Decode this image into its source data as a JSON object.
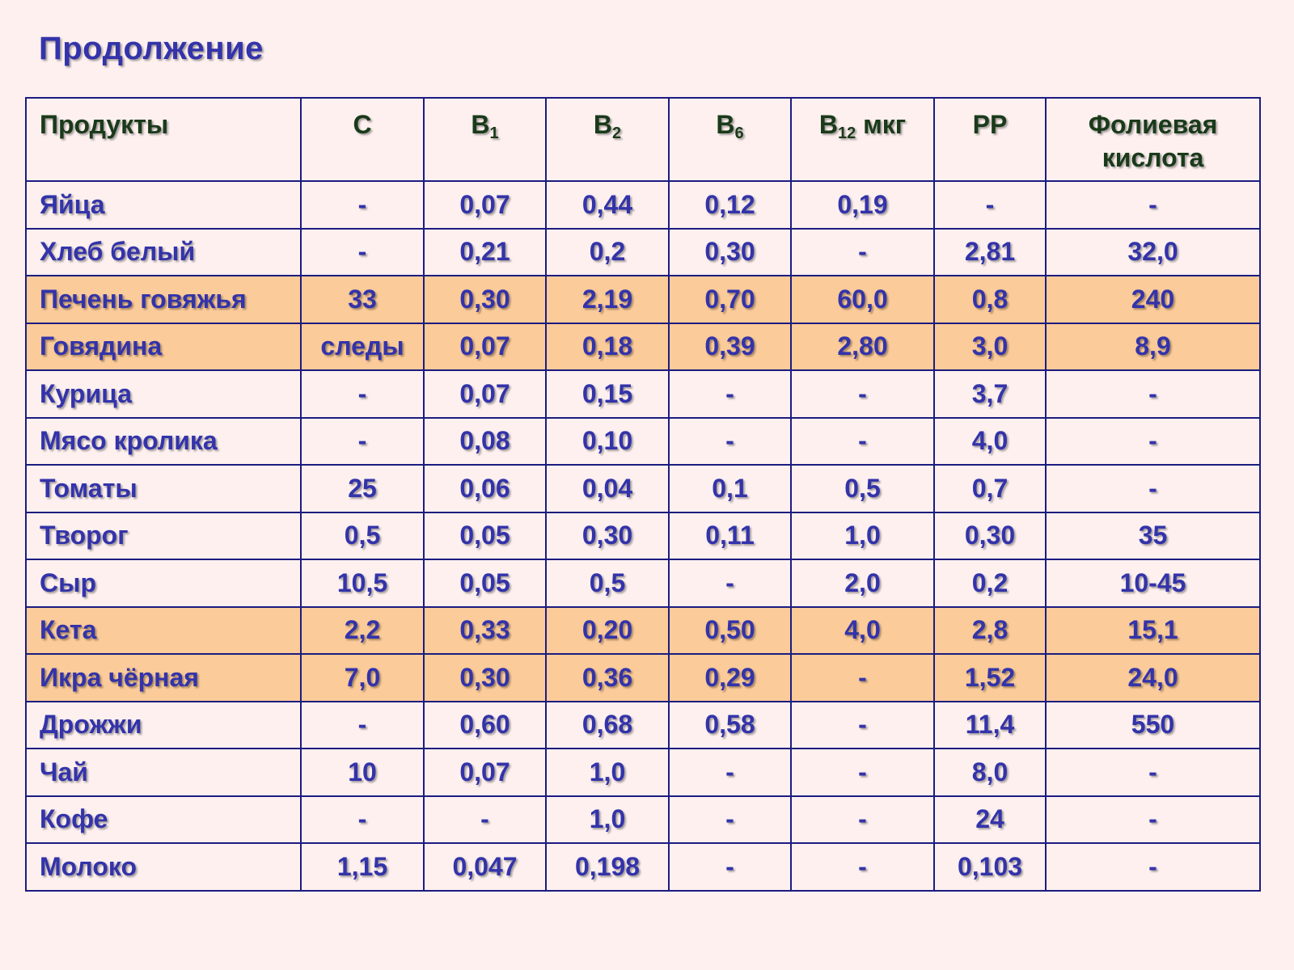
{
  "title": "Продолжение",
  "table": {
    "headers": {
      "product": "Продукты",
      "c": "С",
      "b1": {
        "letter": "В",
        "sub": "1",
        "suffix": ""
      },
      "b2": {
        "letter": "В",
        "sub": "2",
        "suffix": ""
      },
      "b6": {
        "letter": "В",
        "sub": "6",
        "suffix": ""
      },
      "b12": {
        "letter": "В",
        "sub": "12",
        "suffix": " мкг"
      },
      "pp": "РР",
      "folic_line1": "Фолиевая",
      "folic_line2": "кислота"
    },
    "rows": [
      {
        "product": "Яйца",
        "c": "-",
        "b1": "0,07",
        "b2": "0,44",
        "b6": "0,12",
        "b12": "0,19",
        "pp": "-",
        "folic": "-",
        "highlighted": false
      },
      {
        "product": "Хлеб белый",
        "c": "-",
        "b1": "0,21",
        "b2": "0,2",
        "b6": "0,30",
        "b12": "-",
        "pp": "2,81",
        "folic": "32,0",
        "highlighted": false
      },
      {
        "product": "Печень говяжья",
        "c": "33",
        "b1": "0,30",
        "b2": "2,19",
        "b6": "0,70",
        "b12": "60,0",
        "pp": "0,8",
        "folic": "240",
        "highlighted": true
      },
      {
        "product": "Говядина",
        "c": "следы",
        "b1": "0,07",
        "b2": "0,18",
        "b6": "0,39",
        "b12": "2,80",
        "pp": "3,0",
        "folic": "8,9",
        "highlighted": true
      },
      {
        "product": "Курица",
        "c": "-",
        "b1": "0,07",
        "b2": "0,15",
        "b6": "-",
        "b12": "-",
        "pp": "3,7",
        "folic": "-",
        "highlighted": false
      },
      {
        "product": "Мясо кролика",
        "c": "-",
        "b1": "0,08",
        "b2": "0,10",
        "b6": "-",
        "b12": "-",
        "pp": "4,0",
        "folic": "-",
        "highlighted": false
      },
      {
        "product": "Томаты",
        "c": "25",
        "b1": "0,06",
        "b2": "0,04",
        "b6": "0,1",
        "b12": "0,5",
        "pp": "0,7",
        "folic": "-",
        "highlighted": false
      },
      {
        "product": "Творог",
        "c": "0,5",
        "b1": "0,05",
        "b2": "0,30",
        "b6": "0,11",
        "b12": "1,0",
        "pp": "0,30",
        "folic": "35",
        "highlighted": false
      },
      {
        "product": "Сыр",
        "c": "10,5",
        "b1": "0,05",
        "b2": "0,5",
        "b6": "-",
        "b12": "2,0",
        "pp": "0,2",
        "folic": "10-45",
        "highlighted": false
      },
      {
        "product": "Кета",
        "c": "2,2",
        "b1": "0,33",
        "b2": "0,20",
        "b6": "0,50",
        "b12": "4,0",
        "pp": "2,8",
        "folic": "15,1",
        "highlighted": true
      },
      {
        "product": "Икра чёрная",
        "c": "7,0",
        "b1": "0,30",
        "b2": "0,36",
        "b6": "0,29",
        "b12": "-",
        "pp": "1,52",
        "folic": "24,0",
        "highlighted": true
      },
      {
        "product": "Дрожжи",
        "c": "-",
        "b1": "0,60",
        "b2": "0,68",
        "b6": "0,58",
        "b12": "-",
        "pp": "11,4",
        "folic": "550",
        "highlighted": false
      },
      {
        "product": "Чай",
        "c": "10",
        "b1": "0,07",
        "b2": "1,0",
        "b6": "-",
        "b12": "-",
        "pp": "8,0",
        "folic": "-",
        "highlighted": false
      },
      {
        "product": "Кофе",
        "c": "-",
        "b1": "-",
        "b2": "1,0",
        "b6": "-",
        "b12": "-",
        "pp": "24",
        "folic": "-",
        "highlighted": false
      },
      {
        "product": "Молоко",
        "c": "1,15",
        "b1": "0,047",
        "b2": "0,198",
        "b6": "-",
        "b12": "-",
        "pp": "0,103",
        "folic": "-",
        "highlighted": false
      }
    ]
  },
  "colors": {
    "background": "#fdf0ef",
    "text": "#3333aa",
    "header_text": "#1a3a1a",
    "border": "#1c1c80",
    "highlight_row": "#fbcb99"
  }
}
